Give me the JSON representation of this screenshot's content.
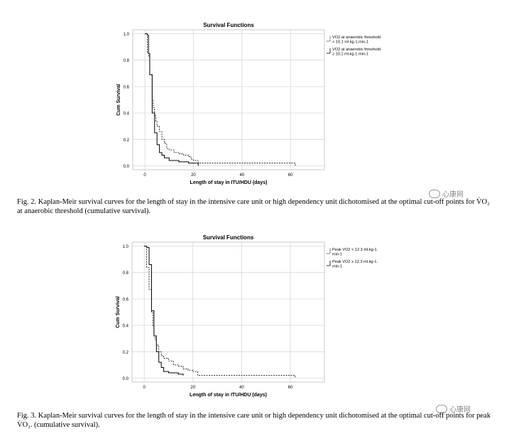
{
  "figures": [
    {
      "caption": "Fig. 2.  Kaplan-Meir survival curves for the length of stay in the intensive care unit or high dependency unit dichotomised at the optimal cut-off points for V̇O₂ at anaerobic threshold (cumulative survival).",
      "watermark": "心康网"
    },
    {
      "caption": "Fig. 3.  Kaplan-Meir survival curves for the length of stay in the intensive care unit or high dependency unit dichotomised at the optimal cut-off points for peak V̇O₂. (cumulative survival).",
      "watermark": "心康网"
    }
  ],
  "chart_data": [
    {
      "type": "line",
      "title": "Survival Functions",
      "xlabel": "Length of stay in ITU/HDU (days)",
      "ylabel": "Cum Survival",
      "xlim": [
        -5,
        74
      ],
      "ylim": [
        -0.03,
        1.03
      ],
      "xticks": [
        "0",
        "20",
        "40",
        "60"
      ],
      "xtick_values": [
        0,
        20,
        40,
        60
      ],
      "yticks": [
        "0.0",
        "0.2",
        "0.4",
        "0.6",
        "0.8",
        "1.0"
      ],
      "ytick_values": [
        0,
        0.2,
        0.4,
        0.6,
        0.8,
        1.0
      ],
      "grid": true,
      "legend_position": "right",
      "series": [
        {
          "name_lines": [
            "VO2 at anaerobic threshold",
            "< 10.1 ml.kg-1.min-1"
          ],
          "style": "dashed",
          "x": [
            0,
            1,
            1.5,
            2,
            3,
            3.5,
            4,
            4.5,
            5,
            6,
            7,
            8,
            9,
            10,
            12,
            14,
            16,
            18,
            19,
            20,
            22,
            62
          ],
          "y": [
            1.0,
            0.86,
            0.83,
            0.69,
            0.5,
            0.44,
            0.38,
            0.34,
            0.3,
            0.26,
            0.2,
            0.17,
            0.13,
            0.12,
            0.1,
            0.09,
            0.08,
            0.07,
            0.05,
            0.04,
            0.02,
            0.0
          ]
        },
        {
          "name_lines": [
            "VO2 at anaerobic threshold",
            "≥ 10.1 ml.kg-1.min-1"
          ],
          "style": "solid",
          "x": [
            0,
            1,
            1.5,
            2,
            3,
            4,
            5,
            6,
            7,
            8,
            10,
            14,
            18,
            22
          ],
          "y": [
            1.0,
            0.99,
            0.85,
            0.69,
            0.4,
            0.25,
            0.16,
            0.1,
            0.08,
            0.06,
            0.04,
            0.03,
            0.02,
            0.0
          ]
        }
      ]
    },
    {
      "type": "line",
      "title": "Survival Functions",
      "xlabel": "Length of stay in ITU/HDU (days)",
      "ylabel": "Cum Survival",
      "xlim": [
        -5,
        74
      ],
      "ylim": [
        -0.03,
        1.03
      ],
      "xticks": [
        "0",
        "20",
        "40",
        "60"
      ],
      "xtick_values": [
        0,
        20,
        40,
        60
      ],
      "yticks": [
        "0.0",
        "0.2",
        "0.4",
        "0.6",
        "0.8",
        "1.0"
      ],
      "ytick_values": [
        0,
        0.2,
        0.4,
        0.6,
        0.8,
        1.0
      ],
      "grid": true,
      "legend_position": "right",
      "series": [
        {
          "name_lines": [
            "Peak VO2 < 12.3 ml.kg-1.",
            "min-1"
          ],
          "style": "dashed",
          "x": [
            0,
            1,
            2,
            3,
            3.5,
            4,
            4.5,
            5,
            6,
            7,
            8,
            10,
            12,
            14,
            16,
            18,
            20,
            22,
            62
          ],
          "y": [
            1.0,
            0.84,
            0.67,
            0.5,
            0.4,
            0.32,
            0.29,
            0.25,
            0.2,
            0.17,
            0.15,
            0.13,
            0.1,
            0.09,
            0.07,
            0.06,
            0.05,
            0.02,
            0.0
          ]
        },
        {
          "name_lines": [
            "Peak VO2 ≥ 12.3 ml.kg-1.",
            "min-1"
          ],
          "style": "solid",
          "x": [
            0,
            1,
            2,
            3,
            4,
            5,
            6,
            7,
            8,
            10,
            14,
            16
          ],
          "y": [
            1.0,
            0.99,
            0.86,
            0.51,
            0.32,
            0.2,
            0.12,
            0.08,
            0.05,
            0.04,
            0.03,
            0.02
          ]
        }
      ]
    }
  ]
}
